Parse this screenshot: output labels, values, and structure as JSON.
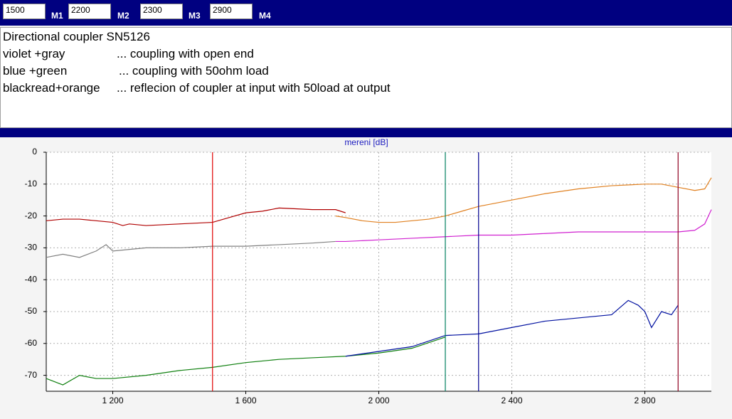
{
  "notes": {
    "title": "Directional coupler SN5126",
    "lines": [
      {
        "label": "violet +gray",
        "text": "... coupling with open end"
      },
      {
        "label": "blue +green",
        "text": "... coupling with 50ohm load"
      },
      {
        "label": "blackread+orange",
        "text": "... reflecion of coupler at input with 50load at output"
      }
    ]
  },
  "chart_data": {
    "type": "line",
    "title": "mereni [dB]",
    "xlim": [
      1000,
      3000
    ],
    "ylim": [
      -75,
      0
    ],
    "xticks": [
      {
        "value": 1200,
        "label": "1 200"
      },
      {
        "value": 1600,
        "label": "1 600"
      },
      {
        "value": 2000,
        "label": "2 000"
      },
      {
        "value": 2400,
        "label": "2 400"
      },
      {
        "value": 2800,
        "label": "2 800"
      }
    ],
    "yticks": [
      0,
      -10,
      -20,
      -30,
      -40,
      -50,
      -60,
      -70
    ],
    "grid": true,
    "markers": [
      {
        "label": "M1",
        "value": 1500,
        "color": "#e00000"
      },
      {
        "label": "M2",
        "value": 2200,
        "color": "#008060"
      },
      {
        "label": "M3",
        "value": 2300,
        "color": "#000090"
      },
      {
        "label": "M4",
        "value": 2900,
        "color": "#900020"
      }
    ],
    "series": [
      {
        "color": "#b00000",
        "x": [
          1000,
          1050,
          1100,
          1150,
          1200,
          1230,
          1250,
          1300,
          1400,
          1500,
          1550,
          1600,
          1650,
          1700,
          1800,
          1870,
          1900
        ],
        "values": [
          -21.5,
          -21,
          -21,
          -21.5,
          -22,
          -23,
          -22.5,
          -23,
          -22.5,
          -22,
          -20.5,
          -19,
          -18.5,
          -17.5,
          -18,
          -18,
          -19
        ]
      },
      {
        "color": "#e08020",
        "x": [
          1870,
          1900,
          1950,
          2000,
          2050,
          2100,
          2150,
          2200,
          2250,
          2300,
          2400,
          2500,
          2600,
          2700,
          2800,
          2850,
          2900,
          2950,
          2980,
          3000
        ],
        "values": [
          -20,
          -20.5,
          -21.5,
          -22,
          -22,
          -21.5,
          -21,
          -20,
          -18.5,
          -17,
          -15,
          -13,
          -11.5,
          -10.5,
          -10,
          -10,
          -11,
          -12,
          -11.5,
          -8
        ]
      },
      {
        "color": "#808080",
        "x": [
          1000,
          1050,
          1100,
          1150,
          1180,
          1200,
          1250,
          1300,
          1400,
          1500,
          1600,
          1700,
          1800,
          1870
        ],
        "values": [
          -33,
          -32,
          -33,
          -31,
          -29,
          -31,
          -30.5,
          -30,
          -30,
          -29.5,
          -29.5,
          -29,
          -28.5,
          -28
        ]
      },
      {
        "color": "#d020d0",
        "x": [
          1870,
          1900,
          2000,
          2100,
          2200,
          2300,
          2400,
          2500,
          2600,
          2700,
          2800,
          2900,
          2950,
          2980,
          3000
        ],
        "values": [
          -28,
          -28,
          -27.5,
          -27,
          -26.5,
          -26,
          -26,
          -25.5,
          -25,
          -25,
          -25,
          -25,
          -24.5,
          -22.5,
          -18
        ]
      },
      {
        "color": "#108010",
        "x": [
          1000,
          1050,
          1100,
          1150,
          1200,
          1300,
          1400,
          1500,
          1600,
          1700,
          1800,
          1900,
          2000,
          2100,
          2200
        ],
        "values": [
          -71,
          -73,
          -70,
          -71,
          -71,
          -70,
          -68.5,
          -67.5,
          -66,
          -65,
          -64.5,
          -64,
          -63,
          -61.5,
          -58
        ]
      },
      {
        "color": "#0010a0",
        "x": [
          1900,
          2000,
          2100,
          2200,
          2300,
          2400,
          2500,
          2600,
          2700,
          2750,
          2780,
          2800,
          2820,
          2850,
          2880,
          2900
        ],
        "values": [
          -64,
          -62.5,
          -61,
          -57.5,
          -57,
          -55,
          -53,
          -52,
          -51,
          -46.5,
          -48,
          -50,
          -55,
          -50,
          -51,
          -48
        ]
      }
    ]
  }
}
